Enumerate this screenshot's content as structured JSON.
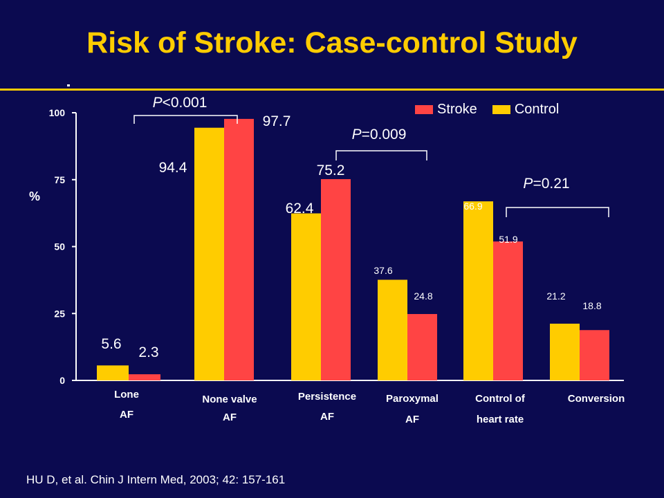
{
  "title": "Risk of Stroke:  Case-control Study",
  "citation": "HU D, et al. Chin J Intern Med, 2003; 42: 157-161",
  "colors": {
    "background": "#0b0a50",
    "title": "#ffcc00",
    "control": "#ffcc00",
    "stroke": "#ff4444",
    "text": "#ffffff"
  },
  "chart_data": {
    "type": "bar",
    "ylabel": "%",
    "ylim": [
      0,
      100
    ],
    "yticks": [
      0,
      25,
      50,
      75,
      100
    ],
    "categories": [
      [
        "Lone",
        "AF"
      ],
      [
        "None valve",
        "AF"
      ],
      [
        "Persistence",
        "AF"
      ],
      [
        "Paroxymal",
        "AF"
      ],
      [
        "Control of",
        "heart rate"
      ],
      [
        "Conversion"
      ]
    ],
    "series": [
      {
        "name": "Control",
        "color": "#ffcc00",
        "values": [
          5.6,
          94.4,
          62.4,
          37.6,
          66.9,
          21.2
        ]
      },
      {
        "name": "Stroke",
        "color": "#ff4444",
        "values": [
          2.3,
          97.7,
          75.2,
          24.8,
          51.9,
          18.8
        ]
      }
    ],
    "legend": {
      "position": "top-right",
      "entries": [
        "Stroke",
        "Control"
      ]
    },
    "annotations": [
      {
        "label": "P<0.001"
      },
      {
        "label": "P=0.009"
      },
      {
        "label": "P=0.21"
      }
    ]
  }
}
